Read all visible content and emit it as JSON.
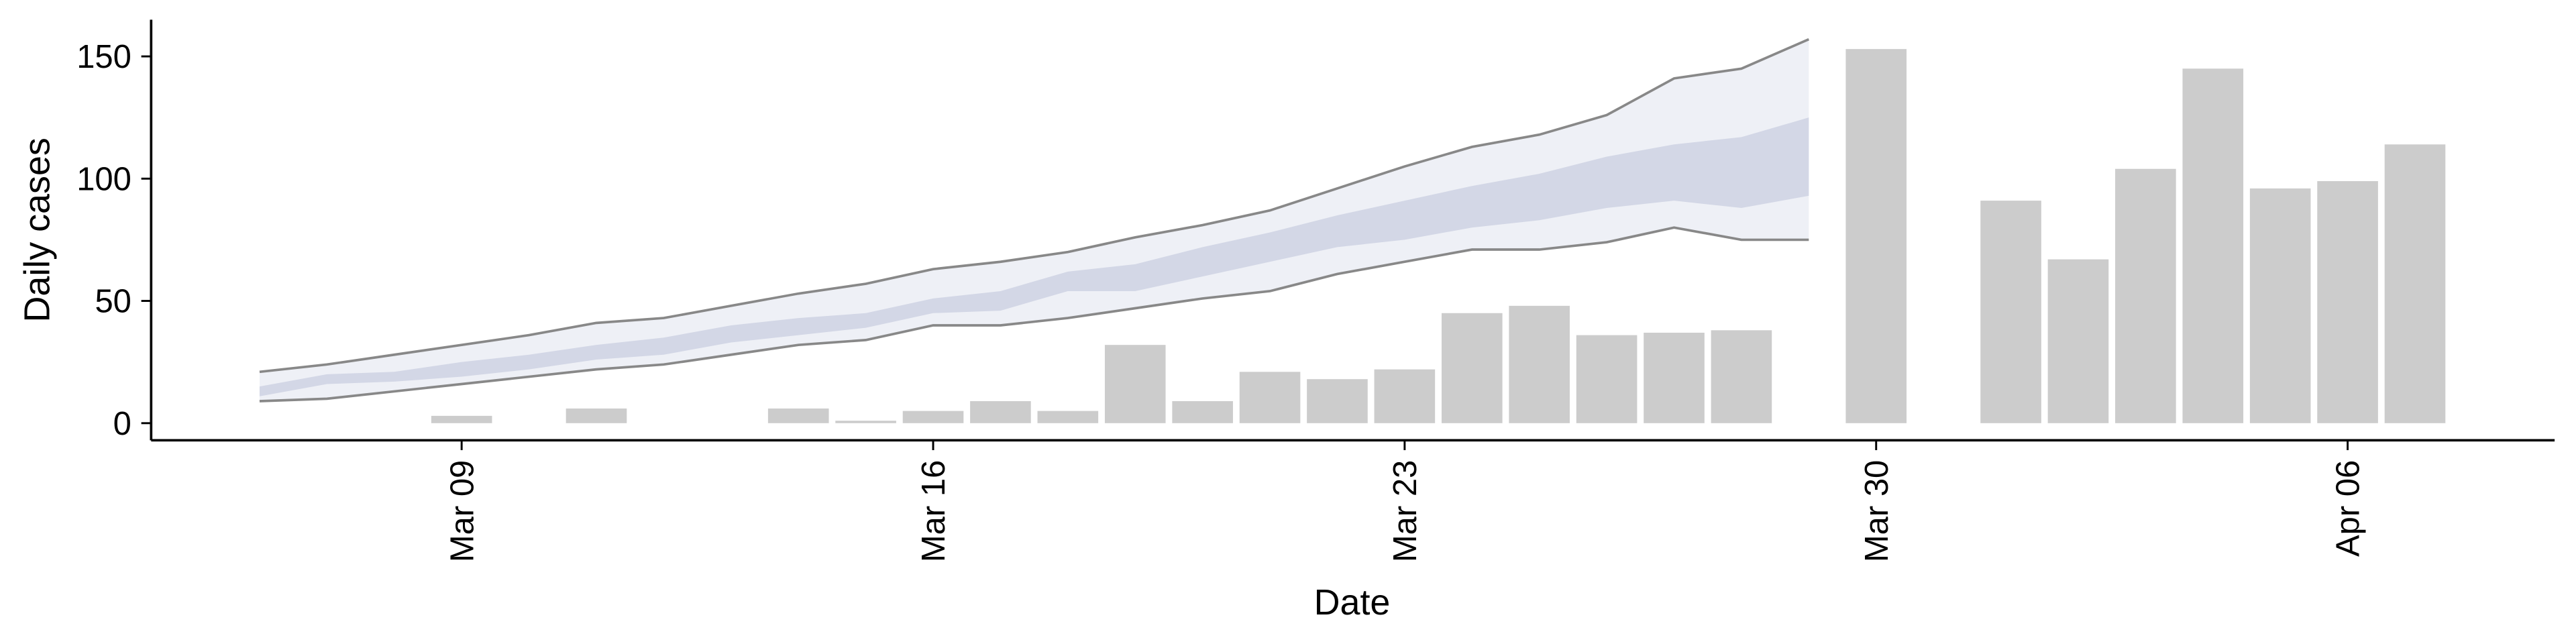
{
  "chart_data": {
    "type": "bar",
    "xlabel": "Date",
    "ylabel": "Daily cases",
    "x": [
      "Mar 06",
      "Mar 07",
      "Mar 08",
      "Mar 09",
      "Mar 10",
      "Mar 11",
      "Mar 12",
      "Mar 13",
      "Mar 14",
      "Mar 15",
      "Mar 16",
      "Mar 17",
      "Mar 18",
      "Mar 19",
      "Mar 20",
      "Mar 21",
      "Mar 22",
      "Mar 23",
      "Mar 24",
      "Mar 25",
      "Mar 26",
      "Mar 27",
      "Mar 28",
      "Mar 29",
      "Mar 30",
      "Mar 31",
      "Apr 01",
      "Apr 02",
      "Apr 03",
      "Apr 04",
      "Apr 05",
      "Apr 06",
      "Apr 07"
    ],
    "xticks": [
      "Mar 09",
      "Mar 16",
      "Mar 23",
      "Mar 30",
      "Apr 06"
    ],
    "ylim": [
      -7,
      165
    ],
    "yticks": [
      0,
      50,
      100,
      150
    ],
    "bars": {
      "color": "#cccccc",
      "values": [
        null,
        null,
        null,
        3,
        null,
        6,
        null,
        null,
        6,
        1,
        5,
        9,
        5,
        32,
        9,
        21,
        18,
        22,
        45,
        48,
        36,
        37,
        38,
        null,
        153,
        null,
        91,
        67,
        104,
        145,
        96,
        99,
        114
      ]
    },
    "bands": [
      {
        "color": "#eef0f6",
        "line_color": "#888888",
        "lower": [
          9,
          10,
          13,
          16,
          19,
          22,
          24,
          28,
          32,
          34,
          40,
          40,
          43,
          47,
          51,
          54,
          61,
          66,
          71,
          71,
          74,
          80,
          75,
          75,
          null,
          null,
          null,
          null,
          null,
          null,
          null,
          null,
          null
        ],
        "upper": [
          21,
          24,
          28,
          32,
          36,
          41,
          43,
          48,
          53,
          57,
          63,
          66,
          70,
          76,
          81,
          87,
          96,
          105,
          113,
          118,
          126,
          141,
          145,
          157,
          null,
          null,
          null,
          null,
          null,
          null,
          null,
          null,
          null
        ]
      },
      {
        "color": "#d3d7e6",
        "lower": [
          11,
          16,
          17,
          19,
          22,
          26,
          28,
          33,
          36,
          39,
          45,
          46,
          54,
          54,
          60,
          66,
          72,
          75,
          80,
          83,
          88,
          91,
          88,
          93,
          null,
          null,
          null,
          null,
          null,
          null,
          null,
          null,
          null
        ],
        "upper": [
          15,
          20,
          21,
          25,
          28,
          32,
          35,
          40,
          43,
          45,
          51,
          54,
          62,
          65,
          72,
          78,
          85,
          91,
          97,
          102,
          109,
          114,
          117,
          125,
          null,
          null,
          null,
          null,
          null,
          null,
          null,
          null,
          null
        ]
      }
    ]
  }
}
